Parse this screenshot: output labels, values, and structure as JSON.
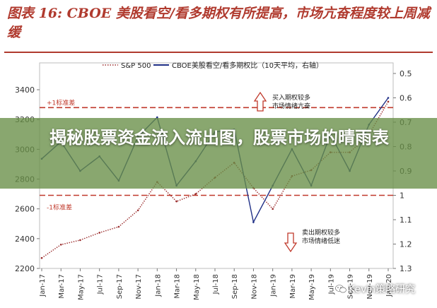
{
  "figure": {
    "title": "图表 16: CBOE 美股看空/看多期权有所提高，市场亢奋程度较上周减缓"
  },
  "banner": {
    "text": "揭秘股票资金流入流出图，股票市场的晴雨表"
  },
  "watermark": {
    "text": "Kevin策略研究",
    "icon": "wechat-icon"
  },
  "chart_data": {
    "type": "line",
    "x": [
      "Jan-17",
      "Mar-17",
      "May-17",
      "Jul-17",
      "Sep-17",
      "Nov-17",
      "Jan-18",
      "Mar-18",
      "May-18",
      "Jul-18",
      "Sep-18",
      "Nov-18",
      "Jan-19",
      "Mar-19",
      "May-19",
      "Jul-19",
      "Sep-19",
      "Nov-19",
      "Jan-20"
    ],
    "x_tick_labels": [
      "Jan-17",
      "Mar-17",
      "May-17",
      "Jul-17",
      "Sep-17",
      "Nov-17",
      "Jan-18",
      "Mar-18",
      "May-18",
      "Jul-18",
      "Sep-18",
      "Nov-18",
      "Jan-19",
      "Mar-19",
      "May-19",
      "Jul-19",
      "Sep-19",
      "Nov-19",
      "Jan-20"
    ],
    "y_left": {
      "ticks": [
        "3400",
        "3200",
        "3000",
        "2800",
        "2600",
        "2400",
        "2200"
      ],
      "range": [
        2200,
        3400
      ]
    },
    "y_right": {
      "ticks": [
        "0.5",
        "0.6",
        "0.7",
        "0.8",
        "0.9",
        "1",
        "1.1",
        "1.2",
        "1.3"
      ],
      "range": [
        0.5,
        1.3
      ],
      "inverted": true
    },
    "legend": {
      "position": "top",
      "entries": [
        "S&P 500",
        "CBOE美股看空/看多期权比（10天平均，右轴）"
      ]
    },
    "reference_lines": [
      {
        "label": "+1标准差",
        "value": 0.64,
        "axis": "right"
      },
      {
        "label": "-1标准差",
        "value": 1.0,
        "axis": "right"
      }
    ],
    "annotations": [
      {
        "text": [
          "买入期权较多",
          "市场情绪亢奋"
        ],
        "arrow": "up"
      },
      {
        "text": [
          "卖出期权较多",
          "市场情绪低迷"
        ],
        "arrow": "down"
      }
    ],
    "series": [
      {
        "name": "S&P 500",
        "axis": "left",
        "style": "dotted",
        "color": "#9b2d2d",
        "values": [
          2270,
          2360,
          2390,
          2440,
          2480,
          2590,
          2780,
          2650,
          2700,
          2810,
          2910,
          2740,
          2600,
          2820,
          2860,
          2980,
          2980,
          3100,
          3320
        ]
      },
      {
        "name": "CBOE美股看空/看多期权比（10天平均，右轴）",
        "axis": "right",
        "style": "solid",
        "color": "#1f2f86",
        "values": [
          0.85,
          0.78,
          0.9,
          0.84,
          0.94,
          0.76,
          0.68,
          0.96,
          0.86,
          0.74,
          0.73,
          1.11,
          0.96,
          0.81,
          0.96,
          0.75,
          0.9,
          0.71,
          0.6
        ]
      }
    ]
  }
}
